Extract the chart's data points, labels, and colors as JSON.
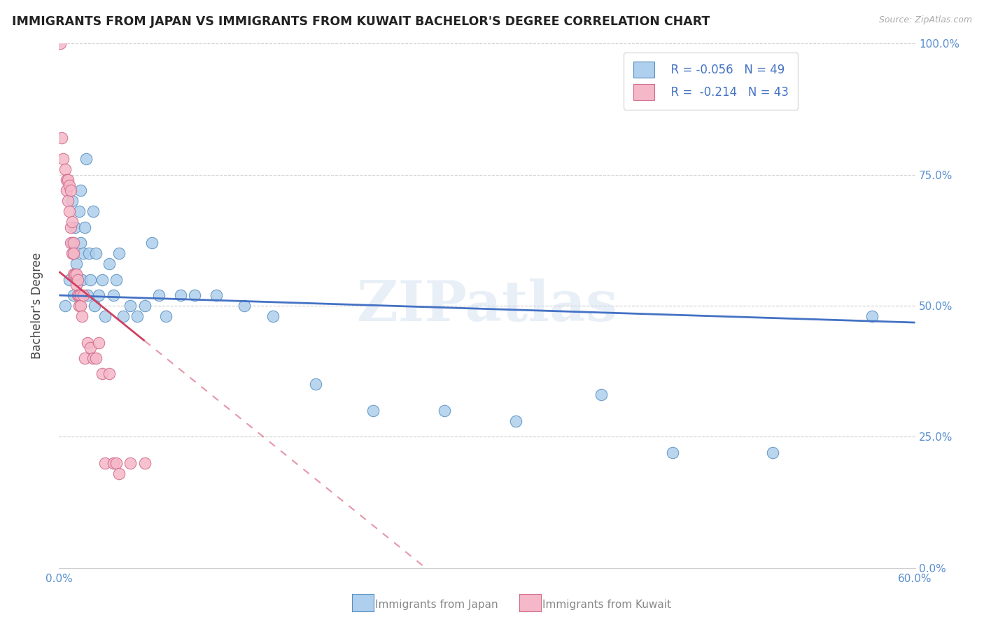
{
  "title": "IMMIGRANTS FROM JAPAN VS IMMIGRANTS FROM KUWAIT BACHELOR'S DEGREE CORRELATION CHART",
  "source": "Source: ZipAtlas.com",
  "legend_xlabel_japan": "Immigrants from Japan",
  "legend_xlabel_kuwait": "Immigrants from Kuwait",
  "ylabel": "Bachelor's Degree",
  "xlim": [
    0.0,
    0.6
  ],
  "ylim": [
    0.0,
    1.0
  ],
  "xticks": [
    0.0,
    0.1,
    0.2,
    0.3,
    0.4,
    0.5,
    0.6
  ],
  "xticklabels": [
    "0.0%",
    "",
    "",
    "",
    "",
    "",
    "60.0%"
  ],
  "yticks": [
    0.0,
    0.25,
    0.5,
    0.75,
    1.0
  ],
  "yticklabels_right": [
    "0.0%",
    "25.0%",
    "50.0%",
    "75.0%",
    "100.0%"
  ],
  "legend_r_japan": "R = -0.056",
  "legend_n_japan": "N = 49",
  "legend_r_kuwait": "R =  -0.214",
  "legend_n_kuwait": "N = 43",
  "japan_face_color": "#aecfed",
  "japan_edge_color": "#5a8fc0",
  "kuwait_face_color": "#f5b8c8",
  "kuwait_edge_color": "#d06888",
  "japan_trend_color": "#4472c4",
  "kuwait_trend_color": "#d04060",
  "watermark": "ZIPatlas",
  "watermark_color": "#ccdcee",
  "japan_x": [
    0.004,
    0.007,
    0.009,
    0.009,
    0.01,
    0.01,
    0.011,
    0.012,
    0.013,
    0.014,
    0.015,
    0.015,
    0.016,
    0.017,
    0.018,
    0.019,
    0.02,
    0.021,
    0.022,
    0.024,
    0.025,
    0.026,
    0.028,
    0.03,
    0.032,
    0.035,
    0.038,
    0.04,
    0.042,
    0.045,
    0.05,
    0.055,
    0.06,
    0.065,
    0.07,
    0.075,
    0.085,
    0.095,
    0.11,
    0.13,
    0.15,
    0.18,
    0.22,
    0.27,
    0.32,
    0.38,
    0.43,
    0.5,
    0.57
  ],
  "japan_y": [
    0.5,
    0.55,
    0.62,
    0.7,
    0.52,
    0.6,
    0.65,
    0.58,
    0.55,
    0.68,
    0.62,
    0.72,
    0.55,
    0.6,
    0.65,
    0.78,
    0.52,
    0.6,
    0.55,
    0.68,
    0.5,
    0.6,
    0.52,
    0.55,
    0.48,
    0.58,
    0.52,
    0.55,
    0.6,
    0.48,
    0.5,
    0.48,
    0.5,
    0.62,
    0.52,
    0.48,
    0.52,
    0.52,
    0.52,
    0.5,
    0.48,
    0.35,
    0.3,
    0.3,
    0.28,
    0.33,
    0.22,
    0.22,
    0.48
  ],
  "kuwait_x": [
    0.001,
    0.002,
    0.003,
    0.004,
    0.005,
    0.005,
    0.006,
    0.006,
    0.007,
    0.007,
    0.008,
    0.008,
    0.008,
    0.009,
    0.009,
    0.01,
    0.01,
    0.01,
    0.011,
    0.012,
    0.012,
    0.013,
    0.013,
    0.014,
    0.014,
    0.015,
    0.015,
    0.016,
    0.017,
    0.018,
    0.02,
    0.022,
    0.024,
    0.026,
    0.028,
    0.03,
    0.032,
    0.035,
    0.038,
    0.04,
    0.042,
    0.05,
    0.06
  ],
  "kuwait_y": [
    1.0,
    0.82,
    0.78,
    0.76,
    0.74,
    0.72,
    0.74,
    0.7,
    0.73,
    0.68,
    0.72,
    0.65,
    0.62,
    0.66,
    0.6,
    0.62,
    0.6,
    0.56,
    0.56,
    0.54,
    0.56,
    0.52,
    0.55,
    0.5,
    0.52,
    0.52,
    0.5,
    0.48,
    0.52,
    0.4,
    0.43,
    0.42,
    0.4,
    0.4,
    0.43,
    0.37,
    0.2,
    0.37,
    0.2,
    0.2,
    0.18,
    0.2,
    0.2
  ],
  "kuwait_trend_solid_end": 0.06,
  "kuwait_trend_dash_end": 0.52
}
